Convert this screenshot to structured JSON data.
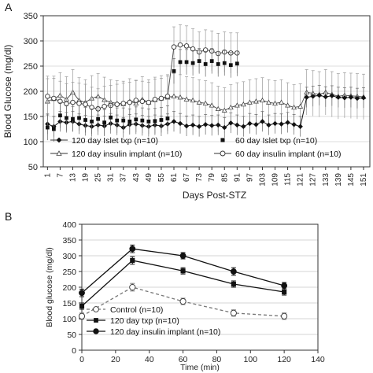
{
  "chart_data": [
    {
      "panel": "A",
      "type": "line",
      "xlabel": "Days Post-STZ",
      "ylabel": "Blood Glucose (mg/dl)",
      "ylim": [
        50,
        350
      ],
      "yticks": [
        50,
        100,
        150,
        200,
        250,
        300,
        350
      ],
      "xticks": [
        1,
        7,
        13,
        19,
        25,
        31,
        37,
        43,
        49,
        55,
        61,
        67,
        73,
        79,
        85,
        91,
        97,
        103,
        109,
        115,
        121,
        127,
        133,
        139,
        145,
        151
      ],
      "legend_placement": "bottom-inside",
      "series": [
        {
          "name": "120 day Islet txp (n=10)",
          "marker": "filled-diamond",
          "line": "solid",
          "x": [
            1,
            4,
            7,
            10,
            13,
            16,
            19,
            22,
            25,
            28,
            31,
            34,
            37,
            40,
            43,
            46,
            49,
            52,
            55,
            58,
            61,
            64,
            67,
            70,
            73,
            76,
            79,
            82,
            85,
            88,
            91,
            94,
            97,
            100,
            103,
            106,
            109,
            112,
            115,
            118,
            121,
            124,
            127,
            130,
            133,
            136,
            139,
            142,
            145,
            148,
            151
          ],
          "y": [
            135,
            130,
            140,
            138,
            140,
            135,
            132,
            130,
            133,
            131,
            136,
            133,
            128,
            134,
            135,
            132,
            130,
            133,
            131,
            135,
            140,
            136,
            131,
            133,
            130,
            134,
            132,
            133,
            128,
            137,
            133,
            130,
            136,
            134,
            140,
            133,
            136,
            135,
            138,
            134,
            130,
            188,
            190,
            192,
            189,
            191,
            188,
            187,
            188,
            186,
            187
          ],
          "error": 20
        },
        {
          "name": "60 day Islet txp (n=10)",
          "marker": "filled-square",
          "line": "none",
          "x": [
            1,
            4,
            7,
            10,
            13,
            16,
            19,
            22,
            25,
            28,
            31,
            34,
            37,
            40,
            43,
            46,
            49,
            52,
            55,
            58,
            61,
            64,
            67,
            70,
            73,
            76,
            79,
            82,
            85,
            88,
            91
          ],
          "y": [
            128,
            125,
            152,
            147,
            145,
            147,
            143,
            140,
            145,
            138,
            148,
            142,
            142,
            140,
            144,
            142,
            140,
            141,
            143,
            146,
            240,
            258,
            258,
            256,
            260,
            254,
            260,
            254,
            256,
            252,
            255
          ],
          "error": 25
        },
        {
          "name": "120 day insulin implant (n=10)",
          "marker": "open-triangle",
          "line": "solid",
          "x": [
            1,
            4,
            7,
            10,
            13,
            16,
            19,
            22,
            25,
            28,
            31,
            34,
            37,
            40,
            43,
            46,
            49,
            52,
            55,
            58,
            61,
            64,
            67,
            70,
            73,
            76,
            79,
            82,
            85,
            88,
            91,
            94,
            97,
            100,
            103,
            106,
            109,
            112,
            115,
            118,
            121,
            124,
            127,
            130,
            133,
            136,
            139,
            142,
            145,
            148,
            151
          ],
          "y": [
            180,
            185,
            192,
            184,
            198,
            182,
            178,
            186,
            190,
            183,
            178,
            176,
            175,
            180,
            176,
            184,
            178,
            183,
            186,
            188,
            190,
            188,
            184,
            182,
            178,
            176,
            172,
            165,
            162,
            168,
            172,
            174,
            178,
            180,
            182,
            178,
            176,
            178,
            172,
            168,
            170,
            198,
            196,
            194,
            198,
            194,
            190,
            192,
            191,
            190,
            189
          ],
          "error": 45
        },
        {
          "name": "60 day insulin implant (n=10)",
          "marker": "open-circle",
          "line": "solid",
          "x": [
            1,
            4,
            7,
            10,
            13,
            16,
            19,
            22,
            25,
            28,
            31,
            34,
            37,
            40,
            43,
            46,
            49,
            52,
            55,
            58,
            61,
            64,
            67,
            70,
            73,
            76,
            79,
            82,
            85,
            88,
            91
          ],
          "y": [
            190,
            186,
            180,
            175,
            178,
            176,
            174,
            168,
            165,
            170,
            172,
            174,
            176,
            178,
            182,
            180,
            178,
            184,
            186,
            190,
            288,
            292,
            290,
            284,
            278,
            282,
            280,
            275,
            278,
            276,
            276
          ],
          "error": 40
        }
      ]
    },
    {
      "panel": "B",
      "type": "line",
      "xlabel": "Time (min)",
      "ylabel": "Blood glucose (mg/dl)",
      "xlim": [
        0,
        140
      ],
      "ylim": [
        0,
        400
      ],
      "xticks": [
        0,
        20,
        40,
        60,
        80,
        100,
        120,
        140
      ],
      "yticks": [
        0,
        50,
        100,
        150,
        200,
        250,
        300,
        350,
        400
      ],
      "legend_placement": "bottom-left",
      "series": [
        {
          "name": "Control (n=10)",
          "marker": "open-circle",
          "line": "dashed",
          "x": [
            0,
            30,
            60,
            90,
            120
          ],
          "y": [
            108,
            200,
            155,
            118,
            108
          ],
          "error": [
            10,
            12,
            10,
            10,
            10
          ]
        },
        {
          "name": "120 day txp (n=10)",
          "marker": "filled-square",
          "line": "solid",
          "x": [
            0,
            30,
            60,
            90,
            120
          ],
          "y": [
            140,
            285,
            252,
            210,
            185
          ],
          "error": [
            10,
            12,
            10,
            10,
            10
          ]
        },
        {
          "name": "120 day insulin implant (n=10)",
          "marker": "filled-circle",
          "line": "solid",
          "x": [
            0,
            30,
            60,
            90,
            120
          ],
          "y": [
            182,
            322,
            300,
            250,
            205
          ],
          "error": [
            12,
            12,
            10,
            12,
            10
          ]
        }
      ]
    }
  ]
}
